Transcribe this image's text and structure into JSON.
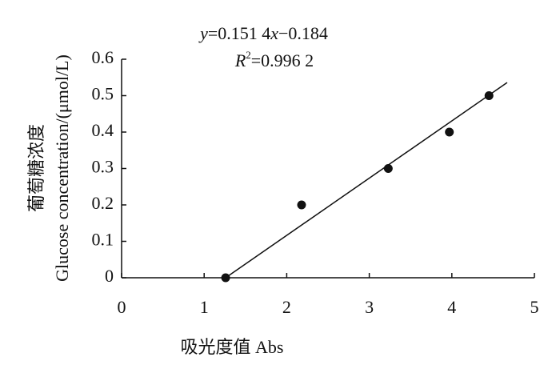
{
  "chart_data": {
    "type": "scatter",
    "annotations": [
      [
        {
          "text": "y",
          "italic": true
        },
        {
          "text": "=0.151 4",
          "italic": false
        },
        {
          "text": "x",
          "italic": true
        },
        {
          "text": "−0.184",
          "italic": false
        }
      ],
      [
        {
          "text": "R",
          "italic": true
        },
        {
          "text": "2",
          "italic": false,
          "sup": true
        },
        {
          "text": "=0.996 2",
          "italic": false
        }
      ]
    ],
    "x_label": "吸光度值  Abs",
    "y_label": [
      "葡萄糖浓度",
      "Glucose concentration/(μmol/L)"
    ],
    "x": [
      1.26,
      2.18,
      3.23,
      3.97,
      4.45
    ],
    "values": [
      0,
      0.2,
      0.3,
      0.4,
      0.5
    ],
    "color": "#111111",
    "fit_line": {
      "x": [
        1.26,
        4.67
      ],
      "values": [
        0,
        0.536
      ]
    },
    "xlim": [
      0,
      5
    ],
    "ylim": [
      0,
      0.6
    ],
    "xticks": [
      0,
      1,
      2,
      3,
      4,
      5
    ],
    "yticks": [
      0,
      0.1,
      0.2,
      0.3,
      0.4,
      0.5,
      0.6
    ]
  }
}
